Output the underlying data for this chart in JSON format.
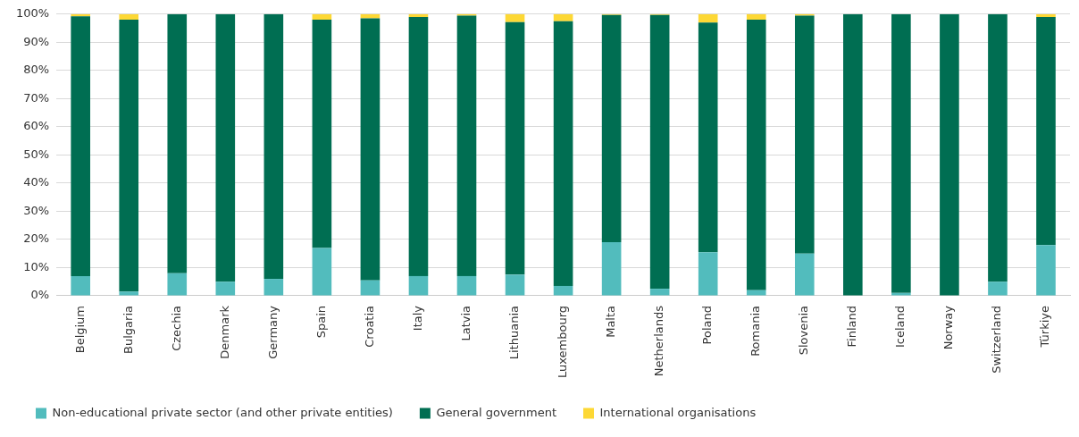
{
  "chart_data": {
    "type": "bar",
    "stacked": true,
    "categories": [
      "Belgium",
      "Bulgaria",
      "Czechia",
      "Denmark",
      "Germany",
      "Spain",
      "Croatia",
      "Italy",
      "Latvia",
      "Lithuania",
      "Luxembourg",
      "Malta",
      "Netherlands",
      "Poland",
      "Romania",
      "Slovenia",
      "Finland",
      "Iceland",
      "Norway",
      "Switzerland",
      "Türkiye"
    ],
    "series": [
      {
        "name": "Non-educational private sector (and other private entities)",
        "color": "#52bcbd",
        "values": [
          7,
          1.5,
          8,
          5,
          6,
          17,
          5.5,
          7,
          7,
          7.5,
          3.5,
          19,
          2.5,
          15.5,
          2,
          15,
          0,
          1,
          0,
          5,
          18
        ]
      },
      {
        "name": "General government",
        "color": "#006e52",
        "values": [
          92.2,
          96.5,
          92,
          95,
          94,
          81,
          93,
          92,
          92.5,
          89.7,
          94,
          80.7,
          97.2,
          81.5,
          96,
          84.5,
          100,
          99,
          100,
          95,
          81
        ]
      },
      {
        "name": "International organisations",
        "color": "#fdd835",
        "values": [
          0.8,
          2,
          0,
          0,
          0,
          2,
          1.5,
          1,
          0.5,
          2.8,
          2.5,
          0.3,
          0.3,
          3,
          2,
          0.5,
          0,
          0,
          0,
          0,
          1
        ]
      }
    ],
    "ylim": [
      0,
      100
    ],
    "yticks": [
      {
        "value": 0,
        "label": "0%"
      },
      {
        "value": 10,
        "label": "10%"
      },
      {
        "value": 20,
        "label": "20%"
      },
      {
        "value": 30,
        "label": "30%"
      },
      {
        "value": 40,
        "label": "40%"
      },
      {
        "value": 50,
        "label": "50%"
      },
      {
        "value": 60,
        "label": "60%"
      },
      {
        "value": 70,
        "label": "70%"
      },
      {
        "value": 80,
        "label": "80%"
      },
      {
        "value": 90,
        "label": "90%"
      },
      {
        "value": 100,
        "label": "100%"
      }
    ],
    "grid": "y",
    "legend": "bottom"
  }
}
